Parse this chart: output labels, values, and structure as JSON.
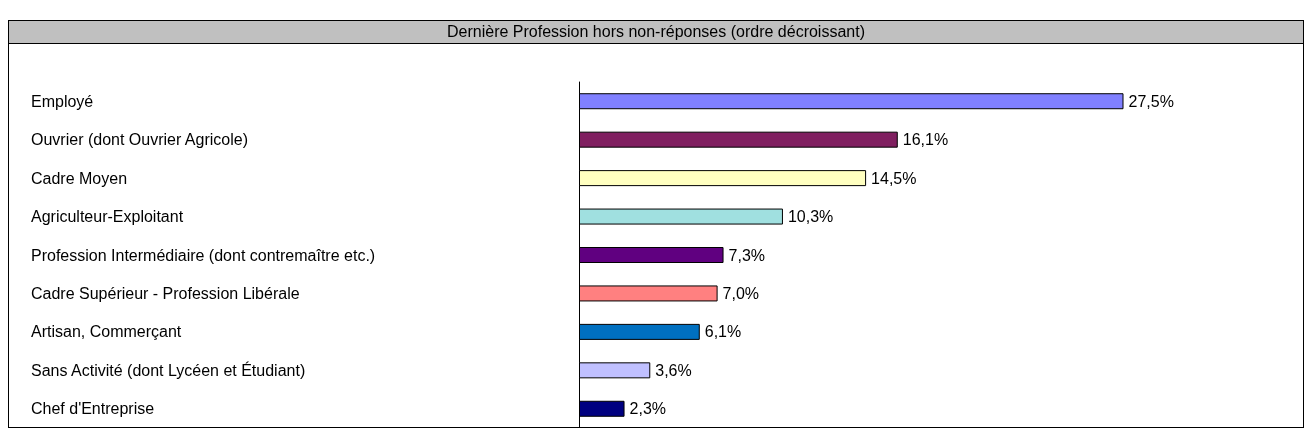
{
  "chart_data": {
    "type": "bar",
    "orientation": "horizontal",
    "title": "Dernière Profession hors non-réponses (ordre décroissant)",
    "categories": [
      "Employé",
      "Ouvrier (dont Ouvrier Agricole)",
      "Cadre Moyen",
      "Agriculteur-Exploitant",
      "Profession Intermédiaire (dont contremaître etc.)",
      "Cadre Supérieur - Profession Libérale",
      "Artisan, Commerçant",
      "Sans Activité (dont Lycéen et Étudiant)",
      "Chef d'Entreprise"
    ],
    "values": [
      27.5,
      16.1,
      14.5,
      10.3,
      7.3,
      7.0,
      6.1,
      3.6,
      2.3
    ],
    "colors": [
      "#8080ff",
      "#801f60",
      "#ffffc0",
      "#a0e0e0",
      "#600080",
      "#ff8080",
      "#0070c0",
      "#c0c0ff",
      "#000080"
    ],
    "value_labels": [
      "27,5%",
      "16,1%",
      "14,5%",
      "10,3%",
      "7,3%",
      "7,0%",
      "6,1%",
      "3,6%",
      "2,3%"
    ],
    "grid": false
  }
}
